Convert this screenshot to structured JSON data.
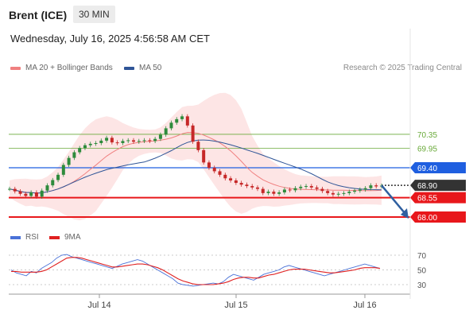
{
  "header": {
    "instrument": "Brent (ICE)",
    "timeframe": "30 MIN"
  },
  "timestamp": "Wednesday, July 16, 2025 4:56:58 AM CET",
  "legend": {
    "ma20": {
      "label": "MA 20 + Bollinger Bands",
      "color": "#f08080"
    },
    "ma50": {
      "label": "MA 50",
      "color": "#2f5597"
    }
  },
  "credit": "Research © 2025 Trading Central",
  "rsi_legend": {
    "rsi": {
      "label": "RSI",
      "color": "#4a72d8"
    },
    "ma9": {
      "label": "9MA",
      "color": "#e02020"
    }
  },
  "chart_data": [
    {
      "type": "line",
      "title": "Brent (ICE) 30 MIN",
      "x_ticks": [
        "Jul 14",
        "Jul 15",
        "Jul 16"
      ],
      "ylim": [
        67.75,
        71.8
      ],
      "price_series": [
        68.8,
        68.73,
        68.66,
        68.6,
        68.7,
        68.58,
        68.75,
        68.9,
        69.05,
        69.2,
        69.48,
        69.68,
        69.84,
        69.96,
        70.04,
        70.08,
        70.1,
        70.17,
        70.25,
        70.12,
        70.1,
        70.16,
        70.18,
        70.14,
        70.16,
        70.18,
        70.16,
        70.22,
        70.34,
        70.52,
        70.68,
        70.78,
        70.86,
        70.6,
        70.14,
        69.9,
        69.55,
        69.4,
        69.3,
        69.2,
        69.1,
        69.04,
        68.97,
        68.92,
        68.88,
        68.84,
        68.8,
        68.68,
        68.72,
        68.66,
        68.7,
        68.78,
        68.76,
        68.82,
        68.86,
        68.88,
        68.84,
        68.8,
        68.74,
        68.68,
        68.64,
        68.66,
        68.68,
        68.72,
        68.75,
        68.78,
        68.82,
        68.9,
        68.87,
        68.89
      ],
      "levels": [
        {
          "value": "70.35",
          "kind": "resistance",
          "color": "#6aaa3a",
          "style": "thin"
        },
        {
          "value": "69.95",
          "kind": "resistance",
          "color": "#6aaa3a",
          "style": "thin"
        },
        {
          "value": "69.40",
          "kind": "pivot",
          "color": "#1f5fe0",
          "style": "medium"
        },
        {
          "value": "68.90",
          "kind": "last",
          "color": "#333333",
          "style": "dotted"
        },
        {
          "value": "68.55",
          "kind": "support",
          "color": "#e8171b",
          "style": "thick"
        },
        {
          "value": "68.00",
          "kind": "support",
          "color": "#e8171b",
          "style": "thick"
        }
      ],
      "forecast_arrow": {
        "from": 68.9,
        "to": 68.0,
        "color": "#2f5fa0"
      },
      "series": [
        {
          "name": "MA 20 + Bollinger Bands"
        },
        {
          "name": "MA 50"
        }
      ]
    },
    {
      "type": "line",
      "title": "RSI",
      "ylim": [
        22,
        78
      ],
      "y_ticks": [
        "70",
        "50",
        "30"
      ],
      "series": [
        {
          "name": "RSI",
          "values": [
            50,
            46,
            44,
            42,
            48,
            46,
            52,
            56,
            60,
            66,
            70,
            71,
            68,
            66,
            64,
            62,
            60,
            58,
            56,
            54,
            52,
            55,
            58,
            60,
            62,
            64,
            62,
            58,
            54,
            50,
            46,
            42,
            38,
            32,
            30,
            29,
            28,
            29,
            30,
            31,
            32,
            31,
            34,
            40,
            44,
            42,
            40,
            38,
            36,
            40,
            44,
            46,
            48,
            50,
            54,
            56,
            54,
            52,
            50,
            48,
            46,
            44,
            42,
            44,
            46,
            48,
            50,
            52,
            54,
            56,
            58,
            56,
            54,
            52
          ]
        },
        {
          "name": "9MA",
          "values": [
            48,
            48,
            47,
            47,
            47,
            47,
            48,
            50,
            54,
            58,
            62,
            66,
            67,
            67,
            66,
            64,
            62,
            60,
            58,
            56,
            54,
            54,
            55,
            56,
            57,
            58,
            58,
            57,
            55,
            53,
            50,
            46,
            42,
            38,
            35,
            33,
            31,
            30,
            30,
            30,
            30,
            31,
            32,
            34,
            37,
            39,
            40,
            40,
            39,
            39,
            41,
            43,
            44,
            46,
            48,
            50,
            51,
            51,
            51,
            50,
            49,
            48,
            47,
            46,
            46,
            47,
            48,
            49,
            50,
            52,
            53,
            53,
            53,
            52
          ]
        }
      ]
    }
  ]
}
